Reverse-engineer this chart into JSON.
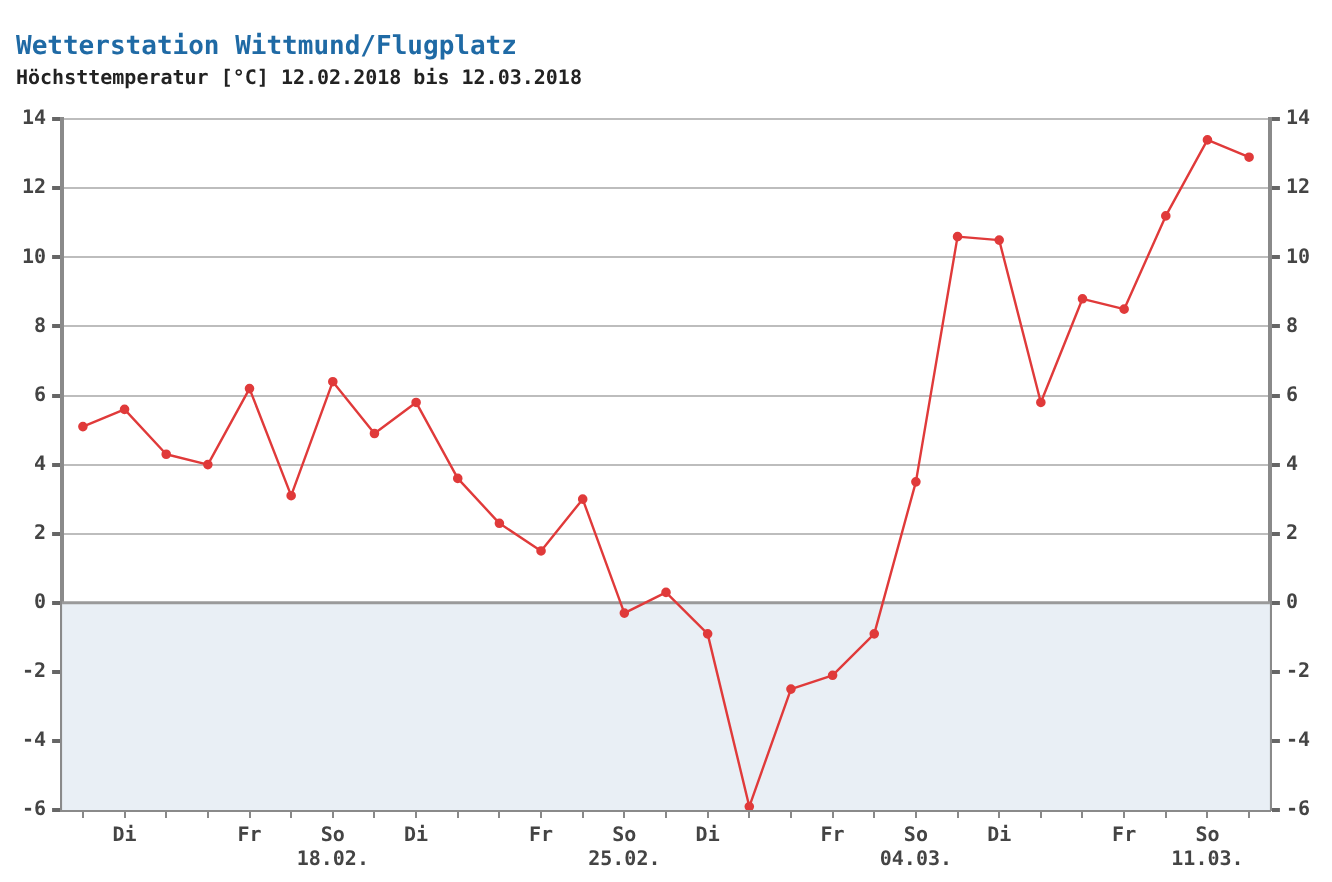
{
  "chart_data": {
    "type": "line",
    "title": "Wetterstation Wittmund/Flugplatz",
    "subtitle": "Höchsttemperatur [°C] 12.02.2018 bis 12.03.2018",
    "categories": [
      null,
      "Di",
      null,
      null,
      "Fr",
      null,
      "So\n18.02.",
      null,
      "Di",
      null,
      null,
      "Fr",
      null,
      "So\n25.02.",
      null,
      "Di",
      null,
      null,
      "Fr",
      null,
      "So\n04.03.",
      null,
      "Di",
      null,
      null,
      "Fr",
      null,
      "So\n11.03.",
      null
    ],
    "series": [
      {
        "color": "#e03a3a",
        "values": [
          5.1,
          5.6,
          4.3,
          4.0,
          6.2,
          3.1,
          6.4,
          4.9,
          5.8,
          3.6,
          2.3,
          1.5,
          3.0,
          -0.3,
          0.3,
          -0.9,
          -5.9,
          -2.5,
          -2.1,
          -0.9,
          3.5,
          10.6,
          10.5,
          5.8,
          8.8,
          8.5,
          11.2,
          13.4,
          12.9
        ]
      }
    ],
    "ylim": [
      -6,
      14
    ],
    "yticks": [
      -6,
      -4,
      -2,
      0,
      2,
      4,
      6,
      8,
      10,
      12,
      14
    ],
    "y2lim": [
      -6,
      14
    ],
    "y2ticks": [
      -6,
      -4,
      -2,
      0,
      2,
      4,
      6,
      8,
      10,
      12,
      14
    ],
    "bands": [
      {
        "axis": "y",
        "from": -6,
        "to": 0,
        "color": "#e9eff5"
      }
    ],
    "ref_lines": [
      {
        "axis": "y",
        "value": 0,
        "color": "#9a9a9a"
      }
    ],
    "grid": "y",
    "legend": false,
    "marker": "circle",
    "line_style": "solid"
  }
}
